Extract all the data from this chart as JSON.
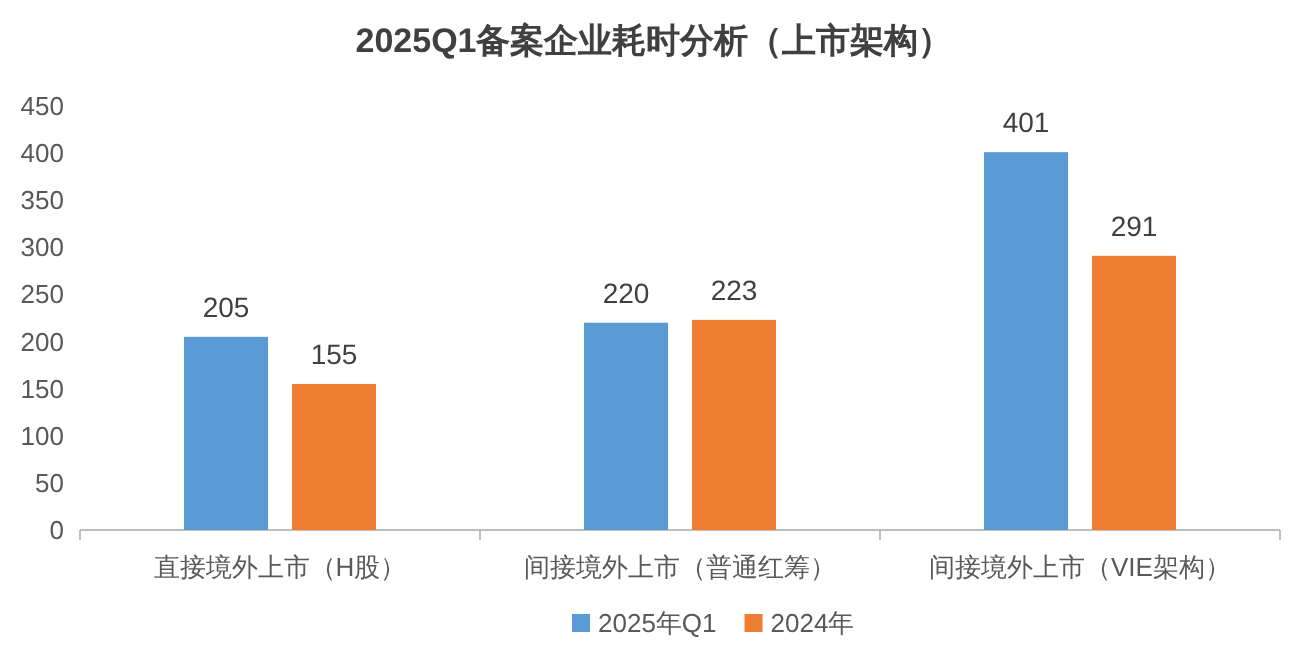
{
  "chart_data": {
    "type": "bar",
    "title": "2025Q1备案企业耗时分析（上市架构）",
    "categories": [
      "直接境外上市（H股）",
      "间接境外上市（普通红筹）",
      "间接境外上市（VIE架构）"
    ],
    "series": [
      {
        "name": "2025年Q1",
        "color": "#5b9bd5",
        "values": [
          205,
          220,
          401
        ]
      },
      {
        "name": "2024年",
        "color": "#ed7d31",
        "values": [
          155,
          223,
          291
        ]
      }
    ],
    "ylim": [
      0,
      450
    ],
    "yticks": [
      0,
      50,
      100,
      150,
      200,
      250,
      300,
      350,
      400,
      450
    ],
    "data_labels": true,
    "legend": "bottom",
    "grid": false
  }
}
